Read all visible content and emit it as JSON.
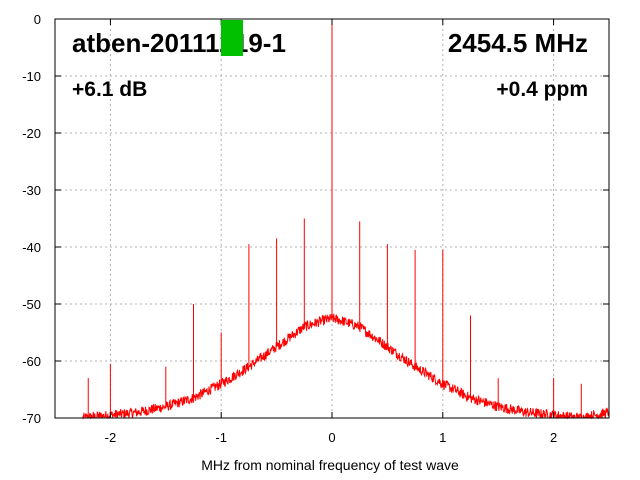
{
  "chart_data": {
    "type": "line",
    "xlabel": "MHz from nominal frequency of test wave",
    "ylabel": "",
    "xlim": [
      -2.5,
      2.5
    ],
    "ylim": [
      -70,
      0
    ],
    "x_ticks": [
      -2,
      -1,
      0,
      1,
      2
    ],
    "y_ticks": [
      0,
      -10,
      -20,
      -30,
      -40,
      -50,
      -60,
      -70
    ],
    "grid": true,
    "annotations": {
      "device": "atben-20111219-1",
      "frequency": "2454.5 MHz",
      "gain": "+6.1 dB",
      "offset": "+0.4 ppm"
    },
    "marker_color": "#00c000",
    "series_color": "#ff0000",
    "noise_floor": {
      "x": [
        -2.25,
        -2.0,
        -1.75,
        -1.5,
        -1.25,
        -1.0,
        -0.75,
        -0.5,
        -0.25,
        -0.1,
        0,
        0.1,
        0.25,
        0.5,
        0.75,
        1.0,
        1.25,
        1.5,
        1.75,
        2.0,
        2.25,
        2.5
      ],
      "y": [
        -70,
        -69.5,
        -69,
        -68,
        -66.5,
        -64,
        -61,
        -57.5,
        -54,
        -53,
        -52.5,
        -53,
        -54,
        -57.5,
        -61,
        -64,
        -66.5,
        -68,
        -69,
        -69.5,
        -70,
        -69
      ]
    },
    "spurs": [
      {
        "x": -2.2,
        "y": -63
      },
      {
        "x": -2.0,
        "y": -60.5
      },
      {
        "x": -1.5,
        "y": -61
      },
      {
        "x": -1.25,
        "y": -50
      },
      {
        "x": -1.0,
        "y": -55
      },
      {
        "x": -0.75,
        "y": -39.5
      },
      {
        "x": -0.5,
        "y": -38.5
      },
      {
        "x": -0.25,
        "y": -35
      },
      {
        "x": 0,
        "y": 0
      },
      {
        "x": 0.25,
        "y": -35.5
      },
      {
        "x": 0.5,
        "y": -39.5
      },
      {
        "x": 0.75,
        "y": -40.5
      },
      {
        "x": 1.0,
        "y": -40.5
      },
      {
        "x": 1.25,
        "y": -52
      },
      {
        "x": 1.5,
        "y": -63
      },
      {
        "x": 2.0,
        "y": -63
      },
      {
        "x": 2.25,
        "y": -64
      }
    ]
  }
}
